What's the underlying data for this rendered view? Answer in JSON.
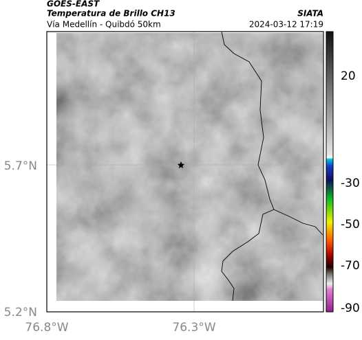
{
  "header": {
    "title": "GOES-EAST",
    "subtitle": "Temperatura de Brillo CH13",
    "route": "Vía Medellín - Quibdó 50km",
    "source": "SIATA",
    "datetime": "2024-03-12 17:19"
  },
  "map": {
    "lat_labels": [
      "5.7°N",
      "5.2°N"
    ],
    "lon_labels": [
      "76.8°W",
      "76.3°W"
    ]
  },
  "colorbar": {
    "tick_labels": [
      "20",
      "-30",
      "-50",
      "-70",
      "-90"
    ]
  }
}
